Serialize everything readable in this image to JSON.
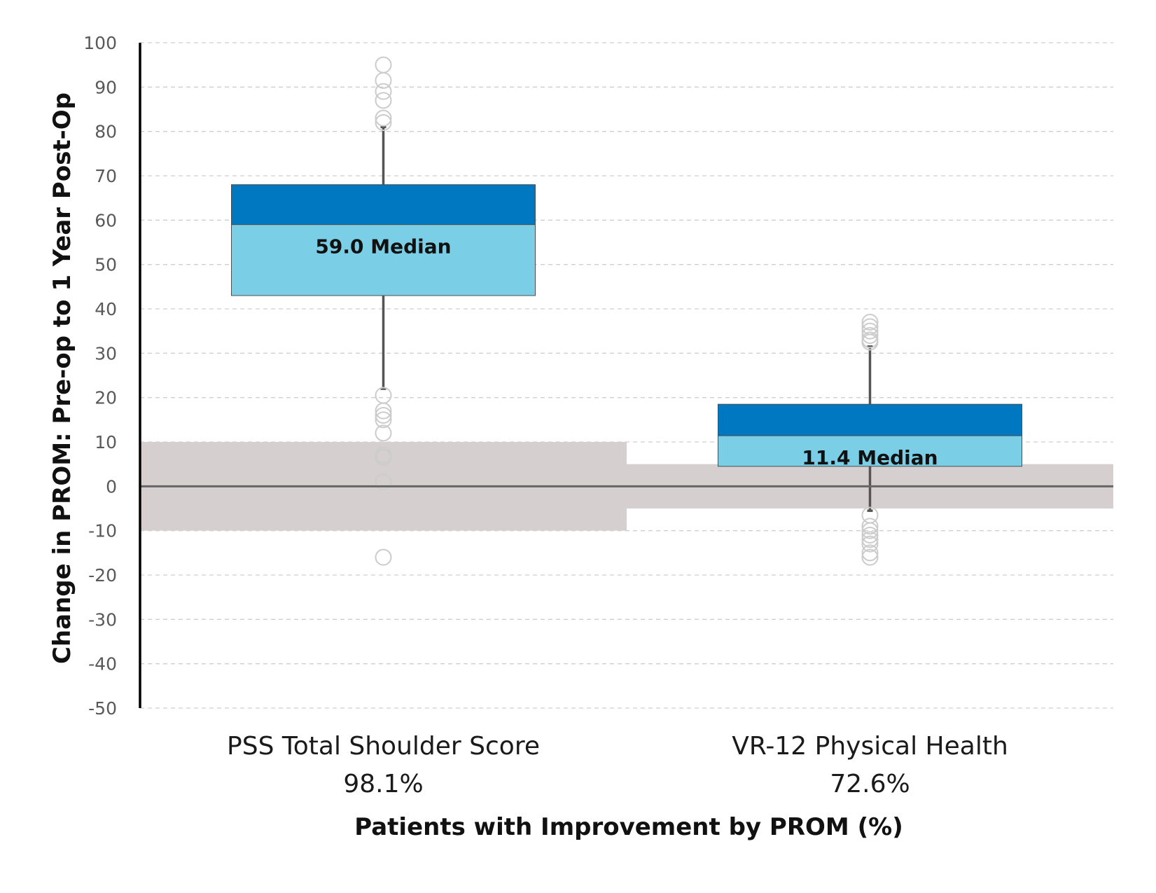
{
  "chart_data": {
    "type": "box",
    "ylabel": "Change in PROM: Pre-op to 1 Year Post-Op",
    "xlabel": "Patients with Improvement by PROM (%)",
    "ylim": [
      -50,
      100
    ],
    "yticks": [
      100,
      90,
      80,
      70,
      60,
      50,
      40,
      30,
      20,
      10,
      0,
      -10,
      -20,
      -30,
      -40,
      -50
    ],
    "grid": true,
    "colors": {
      "upper_box": "#0078c1",
      "lower_box": "#7acfe6",
      "band": "#d6cfcf",
      "whisker": "#555555",
      "outlier": "#cccccc",
      "zero_line": "#666666",
      "grid": "#cfcfcf"
    },
    "groups": [
      {
        "name": "PSS Total Shoulder Score",
        "improvement": "98.1%",
        "median_label": "59.0 Median",
        "q1": 43,
        "median": 59,
        "q3": 68,
        "whisker_low": 22,
        "whisker_high": 81,
        "band": [
          -10,
          10
        ],
        "outliers": [
          95,
          91.5,
          89,
          87,
          83,
          82,
          20.5,
          17,
          16,
          15,
          12,
          7,
          6.5,
          1,
          -16
        ]
      },
      {
        "name": "VR-12 Physical Health",
        "improvement": "72.6%",
        "median_label": "11.4 Median",
        "q1": 4.5,
        "median": 11.4,
        "q3": 18.5,
        "whisker_low": -5.5,
        "whisker_high": 31.5,
        "band": [
          -5,
          5
        ],
        "outliers": [
          37,
          36,
          35,
          34,
          33,
          32.5,
          -6.5,
          -9,
          -10,
          -11,
          -12,
          -13,
          -15,
          -16
        ]
      }
    ]
  }
}
